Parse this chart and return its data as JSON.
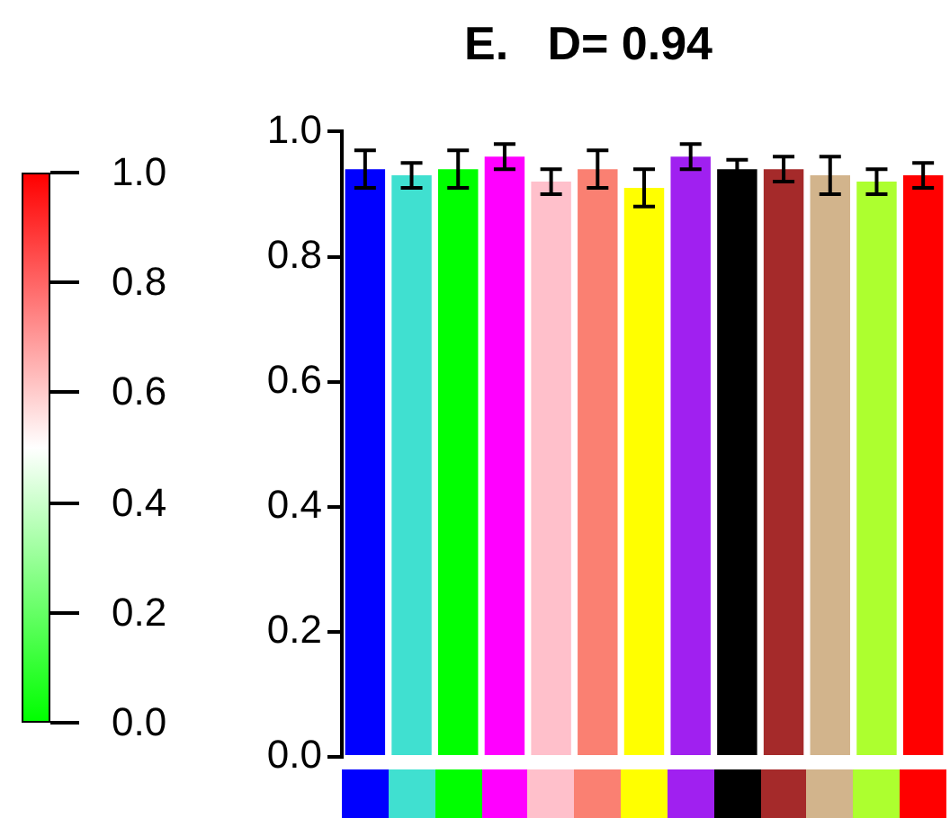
{
  "chart_data": {
    "type": "bar",
    "title": "E.   D= 0.94",
    "categories": [
      null,
      null,
      null,
      null,
      null,
      null,
      null,
      null,
      null,
      null,
      null,
      null,
      null
    ],
    "values": [
      0.94,
      0.93,
      0.94,
      0.96,
      0.92,
      0.94,
      0.91,
      0.96,
      0.94,
      0.94,
      0.93,
      0.92,
      0.93
    ],
    "errors": [
      0.03,
      0.02,
      0.03,
      0.02,
      0.02,
      0.03,
      0.03,
      0.02,
      0.015,
      0.02,
      0.03,
      0.02,
      0.02
    ],
    "colors": [
      "#0000ff",
      "#40e0d0",
      "#00ff00",
      "#ff00ff",
      "#ffc0cb",
      "#fa8072",
      "#ffff00",
      "#a020f0",
      "#000000",
      "#a52a2a",
      "#d2b48c",
      "#adff2f",
      "#ff0000"
    ],
    "ylim": [
      0,
      1
    ],
    "yticks": [
      {
        "value": 0,
        "label": "0.0"
      },
      {
        "value": 0.2,
        "label": "0.2"
      },
      {
        "value": 0.4,
        "label": "0.4"
      },
      {
        "value": 0.6,
        "label": "0.6"
      },
      {
        "value": 0.8,
        "label": "0.8"
      },
      {
        "value": 1,
        "label": "1.0"
      }
    ],
    "clim": [
      0,
      1
    ],
    "cticks": [
      {
        "value": 0,
        "label": "0.0"
      },
      {
        "value": 0.2,
        "label": "0.2"
      },
      {
        "value": 0.4,
        "label": "0.4"
      },
      {
        "value": 0.6,
        "label": "0.6"
      },
      {
        "value": 0.8,
        "label": "0.8"
      },
      {
        "value": 1,
        "label": "1.0"
      }
    ],
    "grid": false,
    "legend": false
  }
}
